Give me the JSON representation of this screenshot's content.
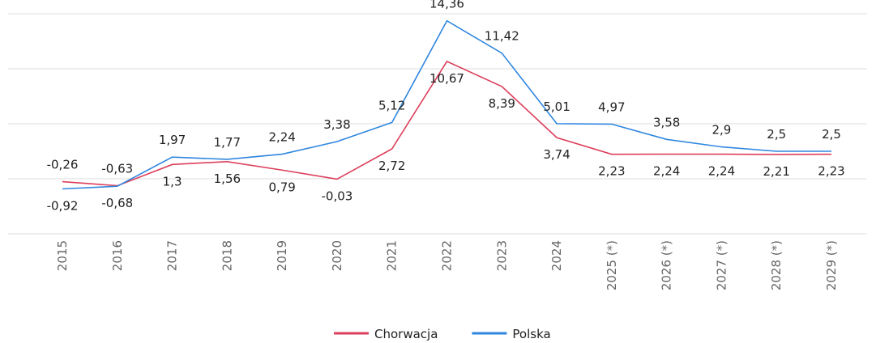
{
  "chart_data": {
    "type": "line",
    "categories": [
      "2015",
      "2016",
      "2017",
      "2018",
      "2019",
      "2020",
      "2021",
      "2022",
      "2023",
      "2024",
      "2025 (*)",
      "2026 (*)",
      "2027 (*)",
      "2028 (*)",
      "2029 (*)"
    ],
    "series": [
      {
        "name": "Chorwacja",
        "color": "#dc3f5b",
        "values": [
          -0.26,
          -0.63,
          1.3,
          1.56,
          0.79,
          -0.03,
          2.72,
          10.67,
          8.39,
          3.74,
          2.23,
          2.24,
          2.24,
          2.21,
          2.23
        ],
        "value_labels": [
          "-0,26",
          "-0,63",
          "1,3",
          "1,56",
          "0,79",
          "-0,03",
          "2,72",
          "10,67",
          "8,39",
          "3,74",
          "2,23",
          "2,24",
          "2,24",
          "2,21",
          "2,23"
        ]
      },
      {
        "name": "Polska",
        "color": "#2f86df",
        "values": [
          -0.92,
          -0.68,
          1.97,
          1.77,
          2.24,
          3.38,
          5.12,
          14.36,
          11.42,
          5.01,
          4.97,
          3.58,
          2.9,
          2.5,
          2.5
        ],
        "value_labels": [
          "-0,92",
          "-0,68",
          "1,97",
          "1,77",
          "2,24",
          "3,38",
          "5,12",
          "14,36",
          "11,42",
          "5,01",
          "4,97",
          "3,58",
          "2,9",
          "2,5",
          "2,5"
        ]
      }
    ],
    "ylim": [
      -5,
      15
    ],
    "yticks": [
      -5,
      0,
      5,
      10,
      15
    ],
    "grid": true,
    "legend": "bottom"
  }
}
